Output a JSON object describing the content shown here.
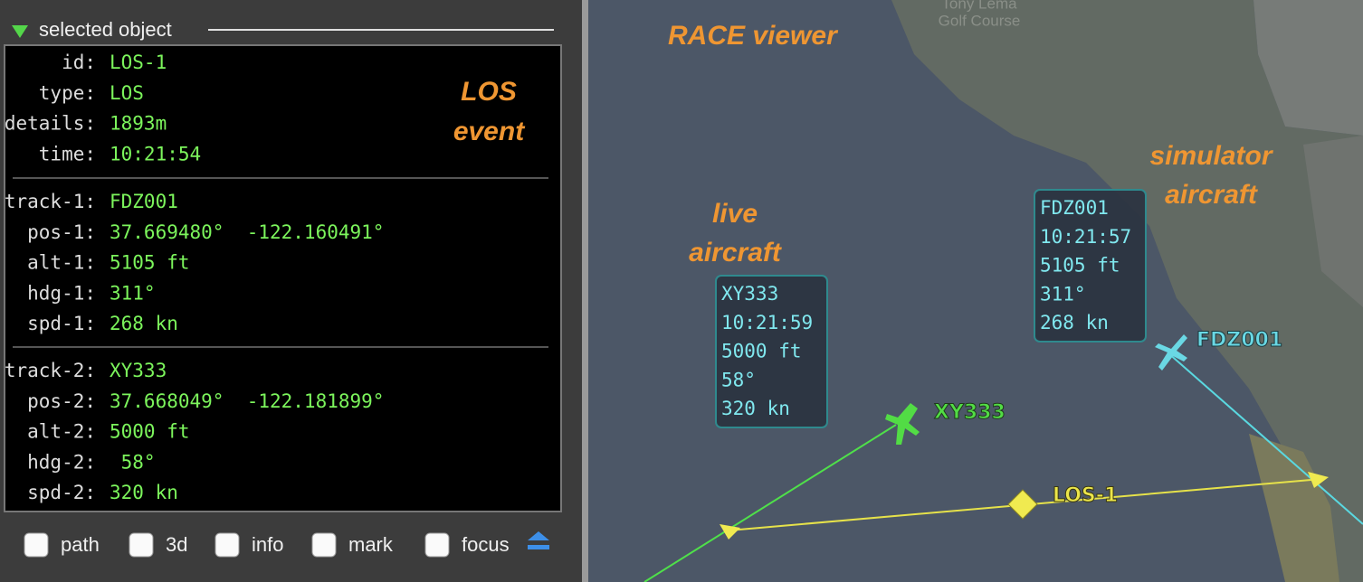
{
  "panel": {
    "title": "selected object",
    "groups": [
      [
        {
          "label": "id:",
          "value": "LOS-1"
        },
        {
          "label": "type:",
          "value": "LOS"
        },
        {
          "label": "details:",
          "value": "1893m"
        },
        {
          "label": "time:",
          "value": "10:21:54"
        }
      ],
      [
        {
          "label": "track-1:",
          "value": "FDZ001"
        },
        {
          "label": "pos-1:",
          "value": "37.669480°  -122.160491°"
        },
        {
          "label": "alt-1:",
          "value": "5105 ft"
        },
        {
          "label": "hdg-1:",
          "value": "311°"
        },
        {
          "label": "spd-1:",
          "value": "268 kn"
        }
      ],
      [
        {
          "label": "track-2:",
          "value": "XY333"
        },
        {
          "label": "pos-2:",
          "value": "37.668049°  -122.181899°"
        },
        {
          "label": "alt-2:",
          "value": "5000 ft"
        },
        {
          "label": "hdg-2:",
          "value": " 58°"
        },
        {
          "label": "spd-2:",
          "value": "320 kn"
        }
      ]
    ],
    "annotation": [
      "LOS",
      "event"
    ],
    "checkboxes": [
      "path",
      "3d",
      "info",
      "mark",
      "focus"
    ]
  },
  "map": {
    "place_label": [
      "Tony Lema",
      "Golf Course"
    ],
    "title": "RACE viewer",
    "live_note": [
      "live",
      "aircraft"
    ],
    "sim_note": [
      "simulator",
      "aircraft"
    ],
    "info_boxes": [
      [
        "XY333",
        "10:21:59",
        "5000 ft",
        "58°",
        "320 kn"
      ],
      [
        "FDZ001",
        "10:21:57",
        "5105 ft",
        "311°",
        "268 kn"
      ]
    ],
    "aircraft_labels": [
      "XY333",
      "FDZ001"
    ],
    "event_label": "LOS-1"
  }
}
